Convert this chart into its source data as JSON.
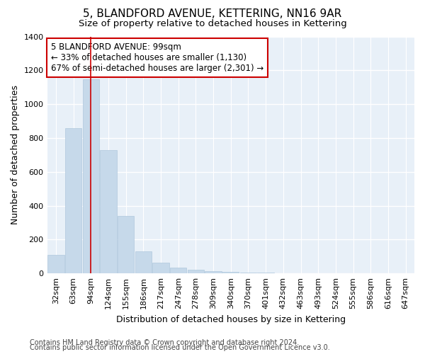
{
  "title": "5, BLANDFORD AVENUE, KETTERING, NN16 9AR",
  "subtitle": "Size of property relative to detached houses in Kettering",
  "xlabel": "Distribution of detached houses by size in Kettering",
  "ylabel": "Number of detached properties",
  "bar_color": "#c6d9ea",
  "bar_edge_color": "#b0c8dc",
  "vline_color": "#cc0000",
  "vline_x_index": 2,
  "categories": [
    "32sqm",
    "63sqm",
    "94sqm",
    "124sqm",
    "155sqm",
    "186sqm",
    "217sqm",
    "247sqm",
    "278sqm",
    "309sqm",
    "340sqm",
    "370sqm",
    "401sqm",
    "432sqm",
    "463sqm",
    "493sqm",
    "524sqm",
    "555sqm",
    "586sqm",
    "616sqm",
    "647sqm"
  ],
  "values": [
    108,
    860,
    1145,
    730,
    340,
    130,
    62,
    33,
    20,
    15,
    10,
    5,
    3,
    0,
    0,
    0,
    0,
    0,
    0,
    0,
    0
  ],
  "ylim": [
    0,
    1400
  ],
  "yticks": [
    0,
    200,
    400,
    600,
    800,
    1000,
    1200,
    1400
  ],
  "annotation_line1": "5 BLANDFORD AVENUE: 99sqm",
  "annotation_line2": "← 33% of detached houses are smaller (1,130)",
  "annotation_line3": "67% of semi-detached houses are larger (2,301) →",
  "footer1": "Contains HM Land Registry data © Crown copyright and database right 2024.",
  "footer2": "Contains public sector information licensed under the Open Government Licence v3.0.",
  "background_color": "#ffffff",
  "plot_bg_color": "#e8f0f8",
  "grid_color": "#ffffff",
  "title_fontsize": 11,
  "subtitle_fontsize": 9.5,
  "label_fontsize": 9,
  "tick_fontsize": 8,
  "footer_fontsize": 7,
  "annotation_fontsize": 8.5
}
